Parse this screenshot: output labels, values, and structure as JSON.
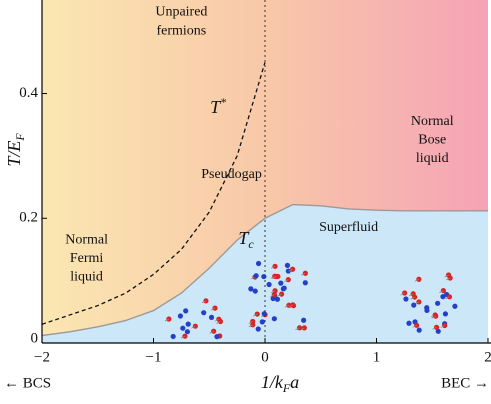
{
  "chart_data": {
    "type": "line",
    "xlabel": "1/kFa",
    "ylabel": "T/EF",
    "left_label": "← BCS",
    "right_label": "BEC →",
    "xlim": [
      -2,
      2
    ],
    "ylim": [
      0,
      0.55
    ],
    "xticks": [
      {
        "value": -2,
        "label": "−2"
      },
      {
        "value": -1,
        "label": "−1"
      },
      0,
      1,
      2
    ],
    "yticks": [
      0,
      0.2,
      0.4
    ],
    "x": [
      -2,
      -1.75,
      -1.5,
      -1.25,
      -1,
      -0.75,
      -0.5,
      -0.25,
      0,
      0.25,
      0.5,
      0.75,
      1,
      1.25,
      1.5,
      1.75,
      2
    ],
    "series": [
      {
        "name": "T*",
        "color": "#111111",
        "dashed": true,
        "values": [
          0.03,
          0.045,
          0.06,
          0.08,
          0.11,
          0.15,
          0.21,
          0.3,
          0.45,
          null,
          null,
          null,
          null,
          null,
          null,
          null,
          null
        ]
      },
      {
        "name": "Tc",
        "color": "#9a9a9a",
        "dashed": false,
        "fill": "#cce7f8",
        "values": [
          0.012,
          0.018,
          0.026,
          0.036,
          0.052,
          0.08,
          0.12,
          0.165,
          0.2,
          0.222,
          0.22,
          0.215,
          0.213,
          0.212,
          0.212,
          0.212,
          0.212
        ]
      }
    ],
    "annotations": [
      {
        "text": "Unpaired",
        "x": -0.75,
        "y": 0.53
      },
      {
        "text": "fermions",
        "x": -0.75,
        "y": 0.5
      },
      {
        "text": "Pseudogap",
        "x": -0.3,
        "y": 0.27
      },
      {
        "text": "Superfluid",
        "x": 0.75,
        "y": 0.185
      },
      {
        "text": "Normal",
        "x": -1.6,
        "y": 0.165
      },
      {
        "text": "Fermi",
        "x": -1.6,
        "y": 0.135
      },
      {
        "text": "liquid",
        "x": -1.6,
        "y": 0.105
      },
      {
        "text": "Normal",
        "x": 1.5,
        "y": 0.355
      },
      {
        "text": "Bose",
        "x": 1.5,
        "y": 0.325
      },
      {
        "text": "liquid",
        "x": 1.5,
        "y": 0.295
      }
    ],
    "curve_labels": [
      {
        "text": "T*",
        "x": -0.42,
        "y": 0.375,
        "series": 0
      },
      {
        "text": "Tc",
        "x": -0.17,
        "y": 0.165,
        "series": 1
      }
    ]
  }
}
